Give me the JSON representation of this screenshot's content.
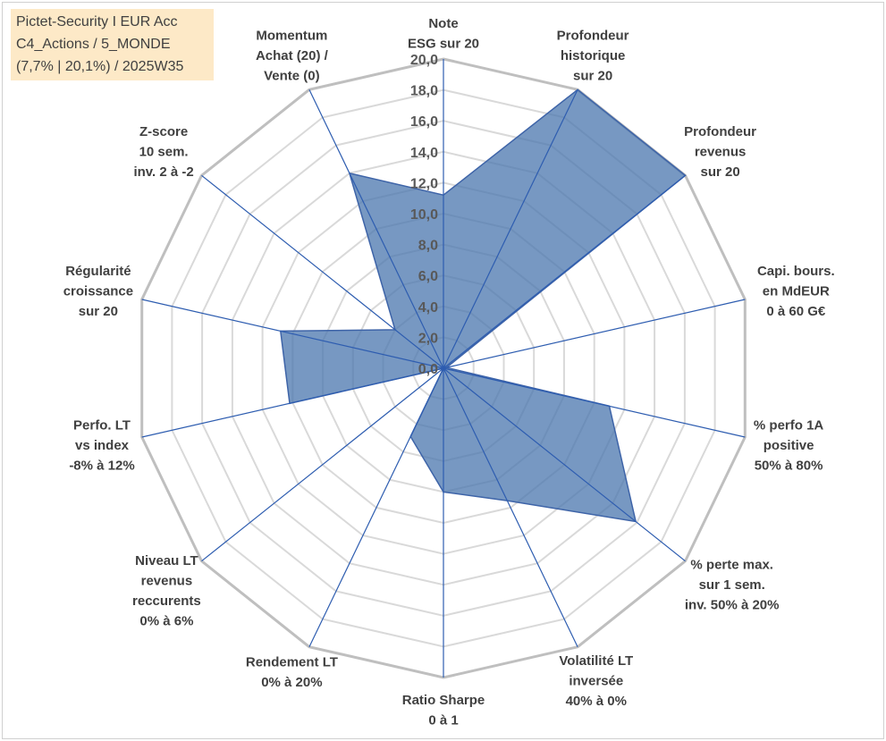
{
  "info": {
    "line1": "Pictet-Security I EUR Acc",
    "line2": "C4_Actions / 5_MONDE",
    "line3": "(7,7% | 20,1%) / 2025W35"
  },
  "colors": {
    "fill": "#4a76ad",
    "fill_opacity": 0.75,
    "stroke": "#3e64a8",
    "spoke": "#2e5db0",
    "outer_grid": "#bfbfbf",
    "inner_grid": "#d9d9d9"
  },
  "chart_data": {
    "type": "radar",
    "title": "",
    "rmin": 0,
    "rmax": 20,
    "tick_step": 2,
    "grid_shape": "polygon",
    "ticks": [
      "0,0",
      "2,0",
      "4,0",
      "6,0",
      "8,0",
      "10,0",
      "12,0",
      "14,0",
      "16,0",
      "18,0",
      "20,0"
    ],
    "axes": [
      {
        "lines": [
          "Note",
          "ESG sur 20"
        ],
        "value": 11.2
      },
      {
        "lines": [
          "Profondeur",
          "historique",
          "sur 20"
        ],
        "value": 20.0
      },
      {
        "lines": [
          "Profondeur",
          "revenus",
          "sur 20"
        ],
        "value": 20.0
      },
      {
        "lines": [
          "Capi. bours.",
          "en MdEUR",
          "0 à 60 G€"
        ],
        "value": 0.2
      },
      {
        "lines": [
          "% perfo 1A",
          "positive",
          "50% à 80%"
        ],
        "value": 11.0
      },
      {
        "lines": [
          "% perte max.",
          "sur 1 sem.",
          "inv. 50% à 20%"
        ],
        "value": 15.9
      },
      {
        "lines": [
          "Volatilité LT",
          "inversée",
          "40% à 0%"
        ],
        "value": 9.5
      },
      {
        "lines": [
          "Ratio Sharpe",
          "0 à 1"
        ],
        "value": 8.0
      },
      {
        "lines": [
          "Rendement LT",
          "0% à 20%"
        ],
        "value": 4.9
      },
      {
        "lines": [
          "Niveau LT",
          "revenus",
          "reccurents",
          "0% à 6%"
        ],
        "value": 0.0
      },
      {
        "lines": [
          "Perfo. LT",
          "vs index",
          "-8% à 12%"
        ],
        "value": 10.2
      },
      {
        "lines": [
          "Régularité",
          "croissance",
          "sur 20"
        ],
        "value": 10.8
      },
      {
        "lines": [
          "Z-score",
          "10 sem.",
          "inv. 2 à -2"
        ],
        "value": 4.0
      },
      {
        "lines": [
          "Momentum",
          "Achat (20) /",
          "Vente (0)"
        ],
        "value": 14.0
      }
    ]
  }
}
